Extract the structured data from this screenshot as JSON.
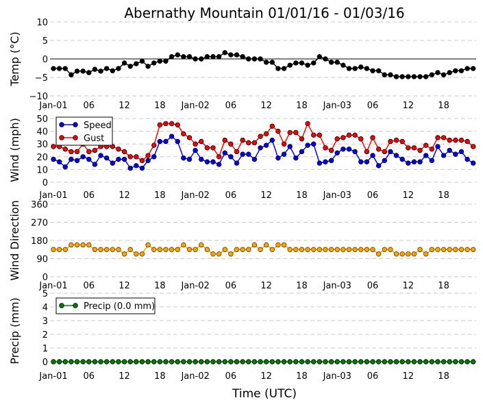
{
  "chart_data": [
    {
      "type": "line",
      "title": "Abernathy Mountain 01/01/16 - 01/03/16",
      "ylabel": "Temp (°C)",
      "ylim": [
        -10,
        10
      ],
      "yticks": [
        "10",
        "5",
        "0",
        "−5",
        "−10"
      ],
      "ytick_values": [
        10,
        5,
        0,
        -5,
        -10
      ],
      "xtick_labels": [
        "Jan-01",
        "06",
        "12",
        "18",
        "Jan-02",
        "06",
        "12",
        "18",
        "Jan-03",
        "06",
        "12",
        "18"
      ],
      "grid": true,
      "series": [
        {
          "name": "Temp",
          "color": "#000000",
          "values": [
            -2.6,
            -2.6,
            -2.6,
            -4.3,
            -3.3,
            -3.3,
            -3.7,
            -2.8,
            -3.3,
            -2.6,
            -3.2,
            -2.6,
            -1.1,
            -2.0,
            -1.3,
            -0.6,
            -2.0,
            -1.1,
            -0.6,
            -0.6,
            0.6,
            1.1,
            0.6,
            0.6,
            0,
            0,
            0.6,
            0.6,
            0.6,
            1.7,
            1.1,
            1.1,
            0.6,
            0,
            0,
            0,
            -0.9,
            -0.9,
            -2.6,
            -2.6,
            -1.7,
            -1.1,
            -1.1,
            -1.7,
            -1.1,
            0.6,
            0,
            -0.9,
            -0.9,
            -1.7,
            -2.6,
            -2.6,
            -2.2,
            -2.6,
            -3.2,
            -3.2,
            -4.3,
            -4.3,
            -4.8,
            -4.8,
            -4.8,
            -4.8,
            -4.8,
            -4.8,
            -4.3,
            -3.7,
            -4.3,
            -3.7,
            -3.2,
            -3.2,
            -2.6,
            -2.6
          ]
        }
      ]
    },
    {
      "type": "line",
      "ylabel": "Wind (mph)",
      "ylim": [
        0,
        50
      ],
      "yticks": [
        "50",
        "40",
        "30",
        "20",
        "10",
        "0"
      ],
      "ytick_values": [
        50,
        40,
        30,
        20,
        10,
        0
      ],
      "xtick_labels": [
        "Jan-01",
        "06",
        "12",
        "18",
        "Jan-02",
        "06",
        "12",
        "18",
        "Jan-03",
        "06",
        "12",
        "18"
      ],
      "legend": "top-left",
      "grid": true,
      "series": [
        {
          "name": "Speed",
          "color": "#0000ff",
          "values": [
            18,
            16,
            12,
            18,
            17,
            20,
            18,
            14,
            21,
            19,
            15,
            18,
            18,
            11,
            13,
            11,
            17,
            20,
            32,
            32,
            36,
            32,
            19,
            18,
            25,
            18,
            16,
            16,
            14,
            23,
            20,
            15,
            22,
            22,
            18,
            27,
            29,
            33,
            19,
            22,
            28,
            19,
            24,
            29,
            30,
            15,
            16,
            17,
            23,
            26,
            26,
            24,
            16,
            16,
            21,
            13,
            17,
            24,
            21,
            18,
            15,
            16,
            16,
            21,
            17,
            28,
            21,
            25,
            22,
            24,
            18,
            15
          ]
        },
        {
          "name": "Gust",
          "color": "#ff0000",
          "values": [
            28,
            28,
            26,
            24,
            24,
            30,
            24,
            25,
            28,
            28,
            28,
            26,
            24,
            20,
            20,
            17,
            21,
            29,
            45,
            46,
            46,
            45,
            38,
            35,
            30,
            32,
            27,
            27,
            20,
            33,
            30,
            24,
            33,
            31,
            31,
            36,
            38,
            44,
            40,
            30,
            39,
            39,
            34,
            46,
            37,
            37,
            27,
            25,
            34,
            35,
            37,
            37,
            34,
            24,
            35,
            26,
            24,
            32,
            33,
            32,
            27,
            27,
            25,
            29,
            26,
            35,
            35,
            33,
            33,
            33,
            32,
            28
          ]
        }
      ]
    },
    {
      "type": "line",
      "ylabel": "Wind Direction",
      "ylim": [
        0,
        360
      ],
      "yticks": [
        "360",
        "270",
        "180",
        "90",
        "0"
      ],
      "ytick_values": [
        360,
        270,
        180,
        90,
        0
      ],
      "xtick_labels": [
        "Jan-01",
        "06",
        "12",
        "18",
        "Jan-02",
        "06",
        "12",
        "18",
        "Jan-03",
        "06",
        "12",
        "18"
      ],
      "grid": true,
      "series": [
        {
          "name": "Direction",
          "color": "#ffa500",
          "values": [
            135,
            135,
            135,
            158,
            158,
            158,
            158,
            135,
            135,
            135,
            135,
            135,
            113,
            135,
            113,
            113,
            158,
            135,
            135,
            135,
            135,
            135,
            158,
            135,
            135,
            158,
            135,
            113,
            113,
            135,
            113,
            135,
            135,
            135,
            158,
            135,
            158,
            135,
            158,
            158,
            135,
            135,
            135,
            135,
            135,
            135,
            135,
            135,
            135,
            135,
            135,
            135,
            135,
            135,
            135,
            113,
            135,
            135,
            113,
            113,
            113,
            113,
            135,
            113,
            135,
            135,
            135,
            135,
            135,
            135,
            135,
            135
          ]
        }
      ]
    },
    {
      "type": "line",
      "ylabel": "Precip (mm)",
      "xlabel": "Time (UTC)",
      "ylim": [
        0,
        5
      ],
      "yticks": [
        "5",
        "4",
        "3",
        "2",
        "1",
        "0"
      ],
      "ytick_values": [
        5,
        4,
        3,
        2,
        1,
        0
      ],
      "xtick_labels": [
        "Jan-01",
        "06",
        "12",
        "18",
        "Jan-02",
        "06",
        "12",
        "18",
        "Jan-03",
        "06",
        "12",
        "18"
      ],
      "legend": "top-left",
      "grid": true,
      "series": [
        {
          "name": "Precip (0.0 mm)",
          "color": "#008000",
          "values": [
            0,
            0,
            0,
            0,
            0,
            0,
            0,
            0,
            0,
            0,
            0,
            0,
            0,
            0,
            0,
            0,
            0,
            0,
            0,
            0,
            0,
            0,
            0,
            0,
            0,
            0,
            0,
            0,
            0,
            0,
            0,
            0,
            0,
            0,
            0,
            0,
            0,
            0,
            0,
            0,
            0,
            0,
            0,
            0,
            0,
            0,
            0,
            0,
            0,
            0,
            0,
            0,
            0,
            0,
            0,
            0,
            0,
            0,
            0,
            0,
            0,
            0,
            0,
            0,
            0,
            0,
            0,
            0,
            0,
            0,
            0,
            0
          ]
        }
      ]
    }
  ]
}
